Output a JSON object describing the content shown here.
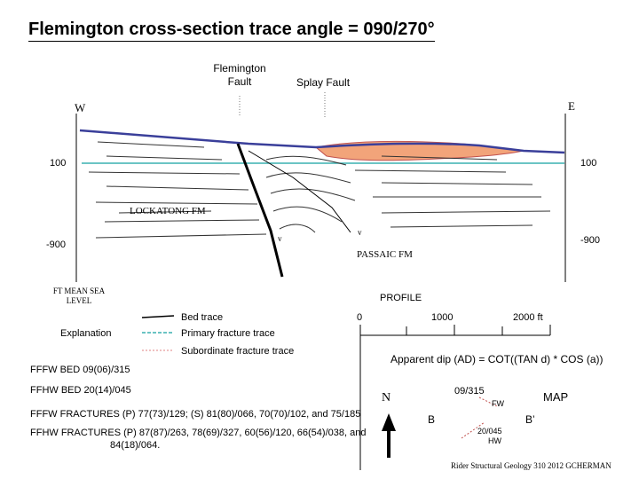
{
  "title": "Flemington cross-section trace angle = 090/270°",
  "labels": {
    "flemington_fault_line1": "Flemington",
    "flemington_fault_line2": "Fault",
    "splay_fault": "Splay Fault",
    "west": "W",
    "east": "E",
    "elev_100_left": "100",
    "elev_100_right": "100",
    "elev_neg900_left": "-900",
    "elev_neg900_right": "-900",
    "lockatong": "LOCKATONG FM",
    "passaic": "PASSAIC FM",
    "datum_line1": "FT MEAN SEA",
    "datum_line2": "LEVEL",
    "profile": "PROFILE",
    "scale_0": "0",
    "scale_1000": "1000",
    "scale_2000": "2000 ft",
    "fault_tick_left": "v",
    "fault_tick_right": "v"
  },
  "legend": {
    "heading": "Explanation",
    "items": [
      {
        "label": "Bed trace",
        "color": "#000000",
        "style": "solid"
      },
      {
        "label": "Primary fracture trace",
        "color": "#3ab0b0",
        "style": "dashed"
      },
      {
        "label": "Subordinate fracture trace",
        "color": "#e08080",
        "style": "dotted"
      }
    ]
  },
  "apparent_dip": "Apparent dip (AD) = COT((TAN d) * COS (a))",
  "notes": [
    "FFFW BED 09(06)/315",
    "FFHW BED 20(14)/045",
    "FFFW FRACTURES   (P) 77(73)/129; (S) 81(80)/066, 70(70)/102, and 75/185",
    "FFHW FRACTURES (P) 87(87)/263, 78(69)/327, 60(56)/120, 66(54)/038, and",
    "84(18)/064."
  ],
  "map": {
    "title": "MAP",
    "north": "N",
    "b": "B",
    "b_prime": "B’",
    "fw_attitude": "09/315",
    "fw": "FW",
    "hw_attitude": "20/045",
    "hw": "HW"
  },
  "credit": "Rider Structural Geology 310 2012 GCHERMAN",
  "colors": {
    "topography": "#3a3f9a",
    "fracture_primary": "#3ab0b0",
    "overburden_fill": "#f2a47a",
    "overburden_stroke": "#c0504d"
  }
}
